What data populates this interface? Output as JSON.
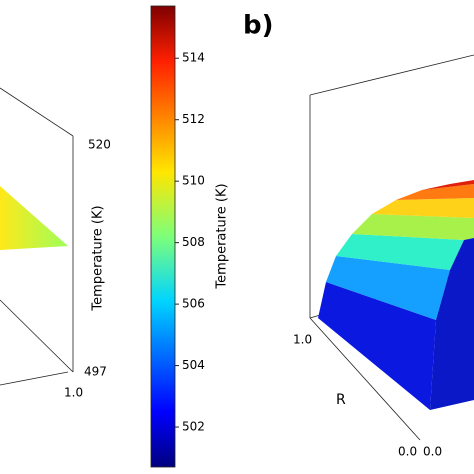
{
  "colorbar": {
    "label": "Temperature (K)",
    "lim": [
      500.7,
      515.7
    ],
    "ticks": [
      502,
      504,
      506,
      508,
      510,
      512,
      514
    ]
  },
  "panel_a": {
    "z_label": "Temperature (K)",
    "z_ticks": [
      520,
      497
    ],
    "x_ticks": [
      "1.0"
    ]
  },
  "panel_b": {
    "label": "b)",
    "x_label": "R",
    "x_ticks": [
      "1.0",
      "0.0"
    ],
    "y_ticks": [
      "0.0"
    ]
  }
}
